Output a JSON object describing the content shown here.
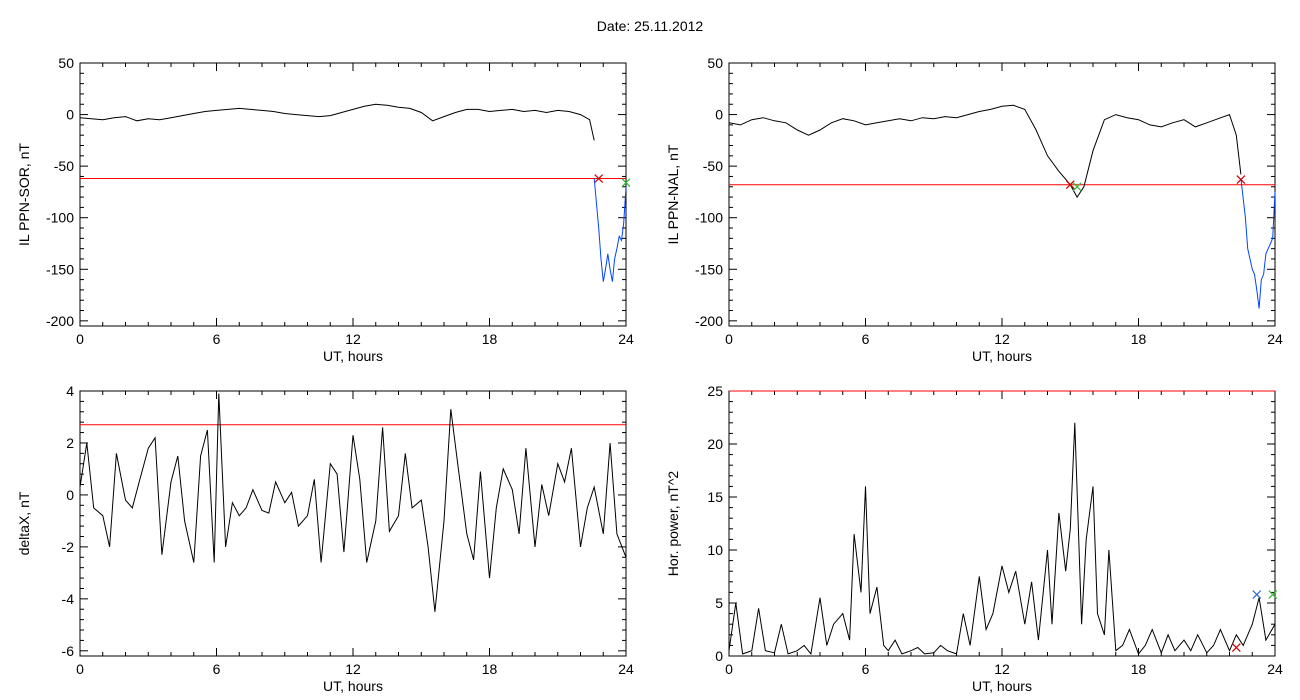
{
  "figure": {
    "title": "Date:  25.11.2012"
  },
  "colors": {
    "threshold": "#ff0000",
    "event": "#0044ff",
    "trace": "#000000",
    "marker_red": "#cc0000",
    "marker_green": "#33bb33",
    "marker_blue": "#3366cc"
  },
  "chart_data": [
    {
      "id": "sor",
      "type": "line",
      "xlabel": "UT, hours",
      "ylabel": "IL PPN-SOR, nT",
      "xlim": [
        0,
        24
      ],
      "ylim": [
        -205,
        50
      ],
      "xticks": [
        0,
        6,
        12,
        18,
        24
      ],
      "yticks": [
        50,
        0,
        -50,
        -100,
        -150,
        -200
      ],
      "threshold": -62,
      "series": [
        {
          "color": "#000000",
          "x": [
            0,
            0.5,
            1,
            1.5,
            2,
            2.5,
            3,
            3.5,
            4,
            4.5,
            5,
            5.5,
            6,
            6.5,
            7,
            7.5,
            8,
            8.5,
            9,
            9.5,
            10,
            10.5,
            11,
            11.5,
            12,
            12.5,
            13,
            13.5,
            14,
            14.5,
            15,
            15.5,
            16,
            16.5,
            17,
            17.5,
            18,
            18.5,
            19,
            19.5,
            20,
            20.5,
            21,
            21.5,
            22,
            22.4,
            22.6
          ],
          "y": [
            -3,
            -4,
            -5,
            -3,
            -2,
            -6,
            -4,
            -5,
            -3,
            -1,
            1,
            3,
            4,
            5,
            6,
            5,
            4,
            3,
            1,
            0,
            -1,
            -2,
            -1,
            2,
            5,
            8,
            10,
            9,
            7,
            6,
            2,
            -6,
            -2,
            2,
            5,
            5,
            3,
            4,
            5,
            3,
            4,
            2,
            4,
            3,
            0,
            -5,
            -25
          ]
        },
        {
          "color": "#0044ff",
          "x": [
            22.6,
            22.8,
            22.9,
            23,
            23.1,
            23.2,
            23.3,
            23.4,
            23.5,
            23.6,
            23.7,
            23.8,
            23.9,
            24
          ],
          "y": [
            -62,
            -110,
            -140,
            -162,
            -150,
            -135,
            -150,
            -162,
            -140,
            -130,
            -118,
            -122,
            -105,
            -70
          ]
        }
      ],
      "markers": [
        {
          "x": 22.8,
          "y": -62,
          "color": "#cc0000"
        },
        {
          "x": 24,
          "y": -66,
          "color": "#33bb33"
        }
      ]
    },
    {
      "id": "nal",
      "type": "line",
      "xlabel": "UT, hours",
      "ylabel": "IL PPN-NAL, nT",
      "xlim": [
        0,
        24
      ],
      "ylim": [
        -205,
        50
      ],
      "xticks": [
        0,
        6,
        12,
        18,
        24
      ],
      "yticks": [
        50,
        0,
        -50,
        -100,
        -150,
        -200
      ],
      "threshold": -68,
      "series": [
        {
          "color": "#000000",
          "x": [
            0,
            0.5,
            1,
            1.5,
            2,
            2.5,
            3,
            3.5,
            4,
            4.5,
            5,
            5.5,
            6,
            6.5,
            7,
            7.5,
            8,
            8.5,
            9,
            9.5,
            10,
            10.5,
            11,
            11.5,
            12,
            12.5,
            13,
            13.5,
            14,
            14.5,
            15,
            15.3,
            15.6,
            16,
            16.5,
            17,
            17.5,
            18,
            18.5,
            19,
            19.5,
            20,
            20.5,
            21,
            21.5,
            22,
            22.3,
            22.5
          ],
          "y": [
            -8,
            -10,
            -5,
            -3,
            -6,
            -8,
            -15,
            -20,
            -15,
            -8,
            -4,
            -6,
            -10,
            -8,
            -6,
            -4,
            -6,
            -3,
            -4,
            -2,
            -3,
            0,
            3,
            5,
            8,
            9,
            5,
            -15,
            -40,
            -55,
            -68,
            -80,
            -70,
            -35,
            -5,
            0,
            -3,
            -5,
            -10,
            -12,
            -8,
            -5,
            -12,
            -8,
            -4,
            0,
            -20,
            -58
          ]
        },
        {
          "color": "#0044ff",
          "x": [
            22.5,
            22.7,
            22.8,
            23,
            23.1,
            23.2,
            23.3,
            23.4,
            23.5,
            23.6,
            23.7,
            23.8,
            23.9,
            24
          ],
          "y": [
            -62,
            -100,
            -130,
            -150,
            -155,
            -170,
            -188,
            -160,
            -155,
            -135,
            -130,
            -125,
            -120,
            -75
          ]
        }
      ],
      "markers": [
        {
          "x": 15.0,
          "y": -68,
          "color": "#cc0000"
        },
        {
          "x": 15.3,
          "y": -70,
          "color": "#33bb33"
        },
        {
          "x": 22.5,
          "y": -63,
          "color": "#cc0000"
        }
      ]
    },
    {
      "id": "deltax",
      "type": "line",
      "xlabel": "UT, hours",
      "ylabel": "deltaX, nT",
      "xlim": [
        0,
        24
      ],
      "ylim": [
        -6.2,
        4
      ],
      "xticks": [
        0,
        6,
        12,
        18,
        24
      ],
      "yticks": [
        4,
        2,
        0,
        -2,
        -4,
        -6
      ],
      "threshold": 2.7,
      "series": [
        {
          "color": "#000000",
          "x": [
            0,
            0.3,
            0.6,
            1,
            1.3,
            1.6,
            2,
            2.3,
            2.6,
            3,
            3.3,
            3.6,
            4,
            4.3,
            4.6,
            5,
            5.3,
            5.6,
            5.9,
            6.1,
            6.4,
            6.7,
            7,
            7.3,
            7.6,
            8,
            8.3,
            8.6,
            9,
            9.3,
            9.6,
            10,
            10.3,
            10.6,
            11,
            11.3,
            11.6,
            12,
            12.3,
            12.6,
            13,
            13.3,
            13.6,
            14,
            14.3,
            14.6,
            15,
            15.3,
            15.6,
            16,
            16.3,
            16.6,
            17,
            17.3,
            17.6,
            18,
            18.3,
            18.6,
            19,
            19.3,
            19.6,
            20,
            20.3,
            20.6,
            21,
            21.3,
            21.6,
            22,
            22.3,
            22.6,
            23,
            23.3,
            23.6,
            24
          ],
          "y": [
            0.3,
            2,
            -0.5,
            -0.8,
            -2,
            1.6,
            -0.2,
            -0.5,
            0.5,
            1.8,
            2.2,
            -2.3,
            0.5,
            1.5,
            -1,
            -2.6,
            1.5,
            2.5,
            -2.6,
            3.9,
            -2,
            -0.3,
            -0.8,
            -0.5,
            0.2,
            -0.6,
            -0.7,
            0.5,
            -0.3,
            0.1,
            -1.2,
            -0.8,
            0.6,
            -2.6,
            1.2,
            0.8,
            -2.2,
            2.3,
            0.6,
            -2.6,
            -1,
            2.6,
            -1.4,
            -0.8,
            1.6,
            -0.5,
            -0.2,
            -2,
            -4.5,
            -1,
            3.3,
            1.2,
            -1.5,
            -2.5,
            0.9,
            -3.2,
            -0.5,
            1,
            0.2,
            -1.5,
            1.8,
            -2,
            0.4,
            -0.8,
            1.2,
            0.5,
            1.8,
            -2,
            -0.5,
            0.3,
            -1.5,
            2,
            -1.5,
            -2.4
          ]
        }
      ],
      "markers": []
    },
    {
      "id": "power",
      "type": "line",
      "xlabel": "UT, hours",
      "ylabel": "Hor. power, nT^2",
      "xlim": [
        0,
        24
      ],
      "ylim": [
        0,
        25
      ],
      "xticks": [
        0,
        6,
        12,
        18,
        24
      ],
      "yticks": [
        25,
        20,
        15,
        10,
        5,
        0
      ],
      "threshold": 25,
      "series": [
        {
          "color": "#000000",
          "x": [
            0,
            0.3,
            0.6,
            1,
            1.3,
            1.6,
            2,
            2.3,
            2.6,
            3,
            3.3,
            3.6,
            4,
            4.3,
            4.6,
            5,
            5.3,
            5.5,
            5.8,
            6,
            6.2,
            6.5,
            6.8,
            7,
            7.3,
            7.6,
            8,
            8.3,
            8.6,
            9,
            9.3,
            9.6,
            10,
            10.3,
            10.6,
            11,
            11.3,
            11.6,
            12,
            12.3,
            12.6,
            13,
            13.3,
            13.6,
            14,
            14.2,
            14.5,
            14.8,
            15,
            15.2,
            15.5,
            15.7,
            16,
            16.2,
            16.5,
            16.7,
            17,
            17.3,
            17.6,
            18,
            18.3,
            18.6,
            19,
            19.3,
            19.6,
            20,
            20.3,
            20.6,
            21,
            21.3,
            21.6,
            22,
            22.3,
            22.6,
            23,
            23.3,
            23.6,
            24
          ],
          "y": [
            0.5,
            5,
            0.2,
            0.5,
            4.5,
            0.5,
            0.3,
            3,
            0.2,
            0.5,
            1,
            0.2,
            5.5,
            1,
            3,
            4,
            1.5,
            11.5,
            6,
            16,
            4,
            6.5,
            1,
            0.5,
            1.5,
            0.2,
            0.5,
            0.8,
            0.2,
            0.3,
            1,
            0.5,
            0.2,
            4,
            1,
            7.5,
            2.5,
            4,
            8.5,
            6,
            8,
            3,
            7,
            1.5,
            10,
            3,
            13.5,
            8,
            12,
            22,
            3,
            11,
            16,
            4,
            2,
            10,
            0.5,
            1,
            2.5,
            0.2,
            1,
            2.5,
            0.3,
            2,
            0.5,
            1.5,
            0.5,
            2,
            0.3,
            1,
            2.5,
            0.5,
            2,
            1,
            3,
            5.5,
            1.5,
            3
          ]
        }
      ],
      "markers": [
        {
          "x": 22.3,
          "y": 0.8,
          "color": "#cc0000"
        },
        {
          "x": 23.2,
          "y": 5.8,
          "color": "#3366cc"
        },
        {
          "x": 23.9,
          "y": 5.8,
          "color": "#33bb33"
        }
      ]
    }
  ]
}
